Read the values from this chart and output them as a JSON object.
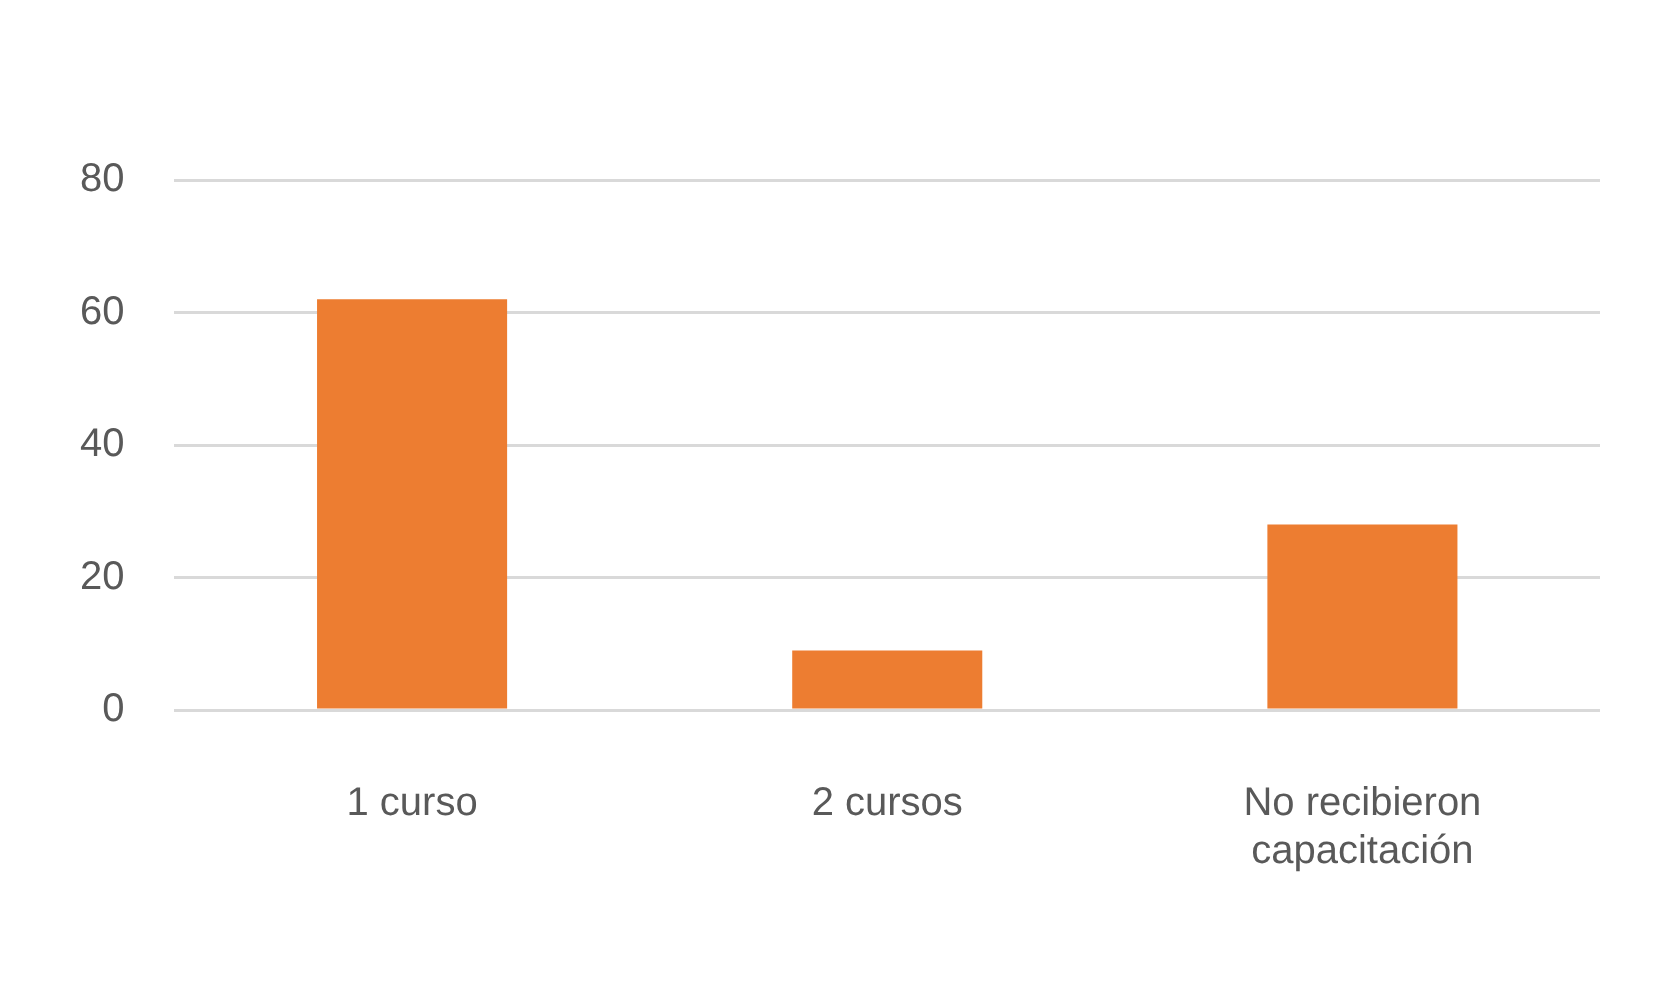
{
  "chart_data": {
    "type": "bar",
    "categories": [
      "1 curso",
      "2 cursos",
      "No recibieron capacitación"
    ],
    "values": [
      62,
      9,
      28
    ],
    "color": "#ed7d31",
    "ylim": [
      0,
      80
    ],
    "yticks": [
      0,
      20,
      40,
      60,
      80
    ],
    "grid": "y"
  }
}
